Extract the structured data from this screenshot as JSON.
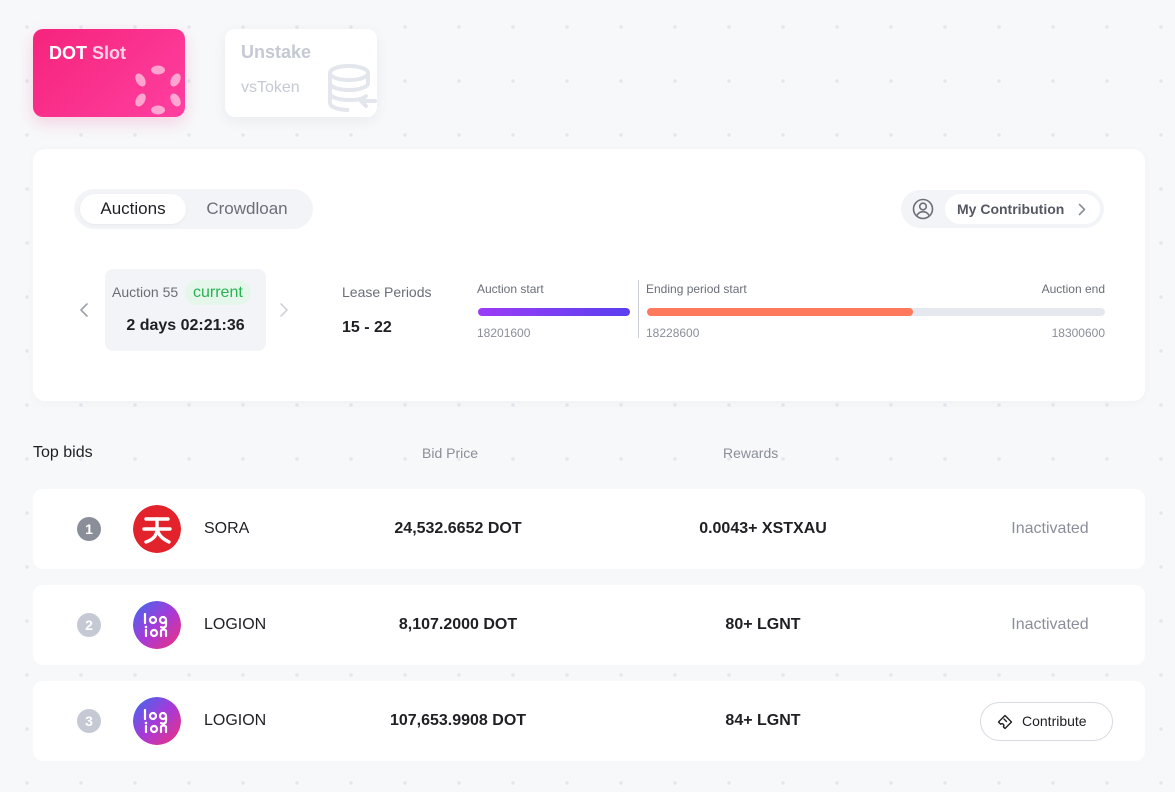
{
  "nav_cards": {
    "dot_slot": {
      "label_main": "DOT",
      "label_accent": "Slot",
      "icon": "polkadot-icon"
    },
    "unstake": {
      "title": "Unstake",
      "subtitle": "vsToken",
      "icon": "coin-stack-unstake-icon"
    }
  },
  "panel": {
    "tabs": [
      {
        "label": "Auctions",
        "active": true
      },
      {
        "label": "Crowdloan",
        "active": false
      }
    ],
    "my_contribution": {
      "label": "My Contribution",
      "icon": "user-circle-icon"
    },
    "auction": {
      "label": "Auction 55",
      "badge": "current",
      "countdown": "2 days 02:21:36"
    },
    "lease": {
      "label": "Lease Periods",
      "value": "15 - 22"
    },
    "timeline": {
      "auction_start_label": "Auction start",
      "auction_start_block": "18201600",
      "ending_start_label": "Ending period start",
      "ending_start_block": "18228600",
      "auction_end_label": "Auction end",
      "auction_end_block": "18300600",
      "ending_progress": 0.58,
      "colors": {
        "start_from": "#9b3cf5",
        "start_to": "#5a3ff0",
        "ending": "#ff7a5c",
        "track": "#e5e8ef"
      }
    }
  },
  "table": {
    "title": "Top bids",
    "headers": {
      "bid_price": "Bid Price",
      "rewards": "Rewards"
    },
    "rows": [
      {
        "rank": "1",
        "name": "SORA",
        "logo": "sora-logo-icon",
        "bid": "24,532.6652 DOT",
        "reward": "0.0043+ XSTXAU",
        "status": "Inactivated"
      },
      {
        "rank": "2",
        "name": "LOGION",
        "logo": "logion-logo-icon",
        "bid": "8,107.2000 DOT",
        "reward": "80+ LGNT",
        "status": "Inactivated"
      },
      {
        "rank": "3",
        "name": "LOGION",
        "logo": "logion-logo-icon",
        "bid": "107,653.9908 DOT",
        "reward": "84+ LGNT",
        "action": "Contribute"
      }
    ]
  }
}
